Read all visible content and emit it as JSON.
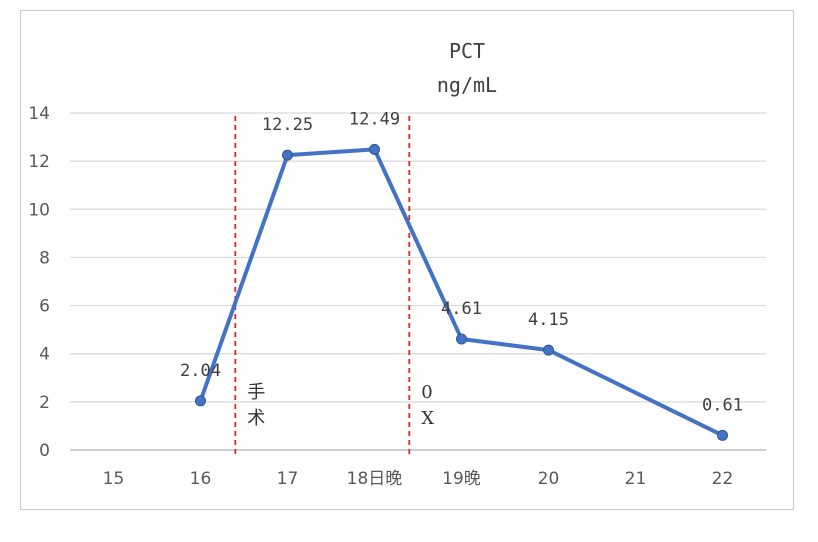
{
  "chart_data": {
    "type": "line",
    "title": "PCT",
    "subtitle": "ng/mL",
    "xlabel": "",
    "ylabel": "",
    "categories": [
      "15",
      "16",
      "17",
      "18日晚",
      "19晚",
      "20",
      "21",
      "22"
    ],
    "series": [
      {
        "color": "#4472C4",
        "points": [
          {
            "x": "16",
            "y": 2.04,
            "label": "2.04"
          },
          {
            "x": "17",
            "y": 12.25,
            "label": "12.25"
          },
          {
            "x": "18日晚",
            "y": 12.49,
            "label": "12.49"
          },
          {
            "x": "19晚",
            "y": 4.61,
            "label": "4.61"
          },
          {
            "x": "20",
            "y": 4.15,
            "label": "4.15"
          },
          {
            "x": "22",
            "y": 0.61,
            "label": "0.61"
          }
        ]
      }
    ],
    "ylim": [
      0,
      14
    ],
    "yticks": [
      0,
      2,
      4,
      6,
      8,
      10,
      12,
      14
    ],
    "grid": true,
    "legend": "none",
    "annotations": [
      {
        "text": "手\n术",
        "x_between": [
          "16",
          "17"
        ],
        "x_fraction": 0.4,
        "color": "#d62728",
        "style": "dashed"
      },
      {
        "text": "0\nX",
        "x_between": [
          "18日晚",
          "19晚"
        ],
        "x_fraction": 0.4,
        "color": "#d62728",
        "style": "dashed"
      }
    ]
  }
}
